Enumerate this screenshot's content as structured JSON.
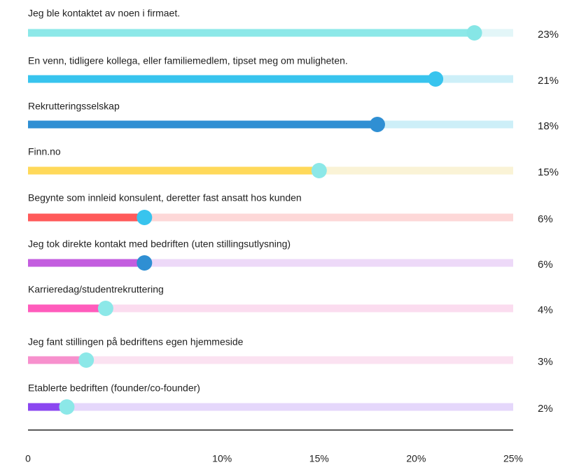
{
  "chart_data": {
    "type": "bar",
    "categories": [
      "Jeg ble kontaktet av noen i firmaet.",
      "En venn, tidligere kollega, eller familiemedlem, tipset meg om muligheten.",
      "Rekrutteringsselskap",
      "Finn.no",
      "Begynte som innleid konsulent, deretter fast ansatt hos kunden",
      "Jeg tok direkte kontakt med bedriften (uten stillingsutlysning)",
      "Karrieredag/studentrekruttering",
      "Jeg fant stillingen på bedriftens egen hjemmeside",
      "Etablerte bedriften (founder/co-founder)"
    ],
    "values": [
      23,
      21,
      18,
      15,
      6,
      6,
      4,
      3,
      2
    ],
    "value_labels": [
      "23%",
      "21%",
      "18%",
      "15%",
      "6%",
      "6%",
      "4%",
      "3%",
      "2%"
    ],
    "colors": [
      "#8ce8e8",
      "#38c4ee",
      "#2f8fd3",
      "#ffd95a",
      "#ff5a5a",
      "#c35ddf",
      "#ff5cbc",
      "#f790cd",
      "#8b47f0"
    ],
    "track_colors": [
      "#e3f6f8",
      "#cdeff8",
      "#cdeff8",
      "#faf3d6",
      "#fdd8d8",
      "#edd9f8",
      "#fbdcef",
      "#fbe2f1",
      "#e5d7fb"
    ],
    "knob_colors": [
      "#86e6e6",
      "#38c4ee",
      "#2f8fd3",
      "#8ce8e8",
      "#38c4ee",
      "#2f8fd3",
      "#8ce8e8",
      "#8ce8e8",
      "#8ce8e8"
    ],
    "xlim": [
      0,
      25
    ],
    "xticks": [
      0,
      {
        "value": 10,
        "label": "10%"
      },
      {
        "value": 15,
        "label": "15%"
      },
      {
        "value": 20,
        "label": "20%"
      },
      {
        "value": 25,
        "label": "25%"
      }
    ]
  }
}
